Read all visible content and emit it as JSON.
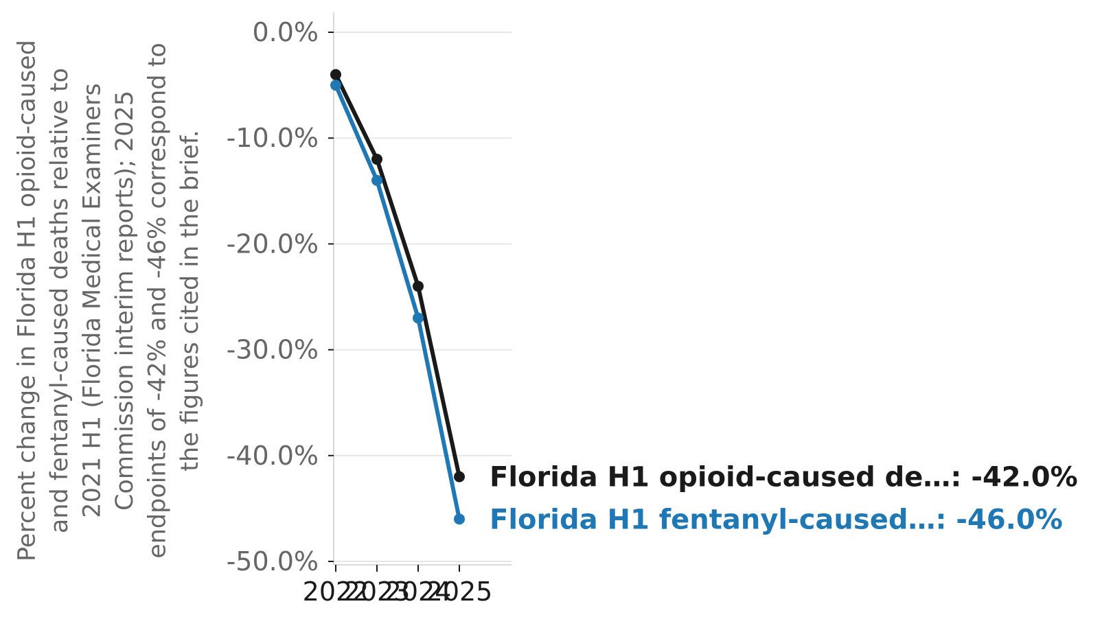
{
  "chart_data": {
    "type": "line",
    "x": [
      2022,
      2023,
      2024,
      2025
    ],
    "x_tick_labels": [
      "2022",
      "2023",
      "2024",
      "2025"
    ],
    "xlim": [
      2022,
      2026
    ],
    "ylim": [
      -50,
      2
    ],
    "y_ticks": [
      0,
      -10,
      -20,
      -30,
      -40,
      -50
    ],
    "y_tick_labels": [
      "0.0%",
      "-10.0%",
      "-20.0%",
      "-30.0%",
      "-40.0%",
      "-50.0%"
    ],
    "ylabel_lines": [
      "Percent change in Florida H1 opioid-caused",
      "and fentanyl-caused deaths relative to",
      "2021 H1 (Florida Medical Examiners",
      "Commission interim reports); 2025",
      "endpoints of -42% and -46% correspond to",
      "the figures cited in the brief."
    ],
    "grid": true,
    "series": [
      {
        "name": "Florida H1 opioid-caused de…",
        "color": "#1a1a1a",
        "values": [
          -4,
          -12,
          -24,
          -42
        ],
        "end_label": "Florida H1 opioid-caused de…: -42.0%"
      },
      {
        "name": "Florida H1 fentanyl-caused…",
        "color": "#1f77b4",
        "values": [
          -5,
          -14,
          -27,
          -46
        ],
        "end_label": "Florida H1 fentanyl-caused…: -46.0%"
      }
    ]
  }
}
